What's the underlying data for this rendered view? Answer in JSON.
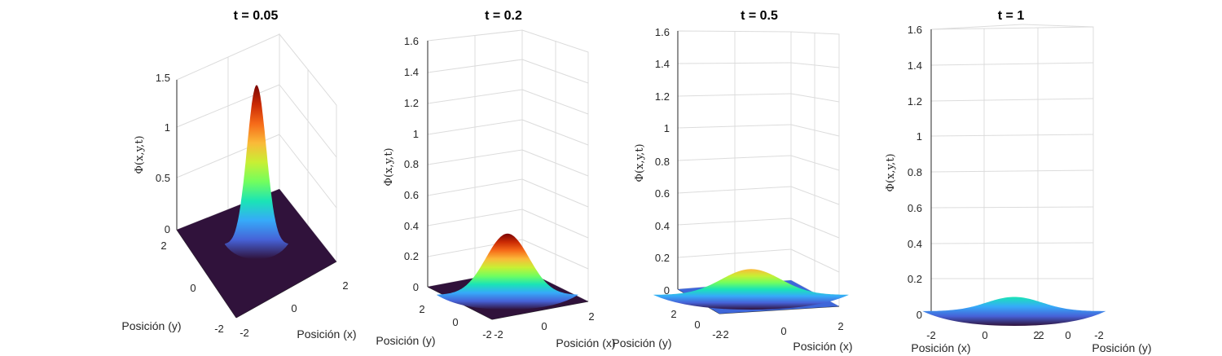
{
  "chart_data": [
    {
      "type": "surface",
      "title": "t = 0.05",
      "zlabel": "Φ(x,y,t)",
      "xlabel": "Posición (x)",
      "ylabel": "Posición (y)",
      "zticks": [
        "0",
        "0.5",
        "1",
        "1.5"
      ],
      "xticks": [
        "-2",
        "0",
        "2"
      ],
      "yticks": [
        "-2",
        "0",
        "2"
      ],
      "zlim": [
        0,
        1.6
      ],
      "xlim": [
        -2,
        2
      ],
      "ylim": [
        -2,
        2
      ],
      "peak": 1.59,
      "colormap": "turbo"
    },
    {
      "type": "surface",
      "title": "t = 0.2",
      "zlabel": "Φ(x,y,t)",
      "xlabel": "Posición (x)",
      "ylabel": "Posición (y)",
      "zticks": [
        "0",
        "0.2",
        "0.4",
        "0.6",
        "0.8",
        "1",
        "1.2",
        "1.4",
        "1.6"
      ],
      "xticks": [
        "-2",
        "0",
        "2"
      ],
      "yticks": [
        "-2",
        "0",
        "2"
      ],
      "zlim": [
        0,
        1.6
      ],
      "xlim": [
        -2,
        2
      ],
      "ylim": [
        -2,
        2
      ],
      "peak": 0.4,
      "colormap": "turbo"
    },
    {
      "type": "surface",
      "title": "t = 0.5",
      "zlabel": "Φ(x,y,t)",
      "xlabel": "Posición (x)",
      "ylabel": "Posición (y)",
      "zticks": [
        "0",
        "0.2",
        "0.4",
        "0.6",
        "0.8",
        "1",
        "1.2",
        "1.4",
        "1.6"
      ],
      "xticks": [
        "-2",
        "0",
        "2"
      ],
      "yticks": [
        "-2",
        "0",
        "2"
      ],
      "zlim": [
        0,
        1.6
      ],
      "xlim": [
        -2,
        2
      ],
      "ylim": [
        -2,
        2
      ],
      "peak": 0.16,
      "colormap": "turbo"
    },
    {
      "type": "surface",
      "title": "t = 1",
      "zlabel": "Φ(x,y,t)",
      "xlabel": "Posición (x)",
      "ylabel": "Posición (y)",
      "zticks": [
        "0",
        "0.2",
        "0.4",
        "0.6",
        "0.8",
        "1",
        "1.2",
        "1.4",
        "1.6"
      ],
      "xticks": [
        "-2",
        "0",
        "2"
      ],
      "yticks": [
        "2",
        "0",
        "-2"
      ],
      "zlim": [
        0,
        1.6
      ],
      "xlim": [
        -2,
        2
      ],
      "ylim": [
        -2,
        2
      ],
      "peak": 0.08,
      "colormap": "turbo"
    }
  ]
}
